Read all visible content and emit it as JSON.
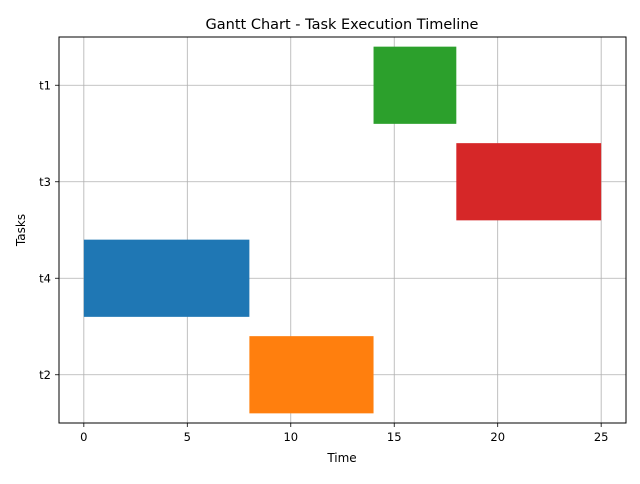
{
  "chart_data": {
    "type": "bar",
    "orientation": "horizontal",
    "subtype": "gantt",
    "title": "Gantt Chart - Task Execution Timeline",
    "xlabel": "Time",
    "ylabel": "Tasks",
    "xlim": [
      -1.2,
      26.2
    ],
    "xticks": [
      0,
      5,
      10,
      15,
      20,
      25
    ],
    "grid": true,
    "legend": null,
    "tasks": [
      {
        "label": "t1",
        "start": 14,
        "end": 18,
        "color": "#2ca02c"
      },
      {
        "label": "t3",
        "start": 18,
        "end": 25,
        "color": "#d62728"
      },
      {
        "label": "t4",
        "start": 0,
        "end": 8,
        "color": "#1f77b4"
      },
      {
        "label": "t2",
        "start": 8,
        "end": 14,
        "color": "#ff7f0e"
      }
    ]
  }
}
